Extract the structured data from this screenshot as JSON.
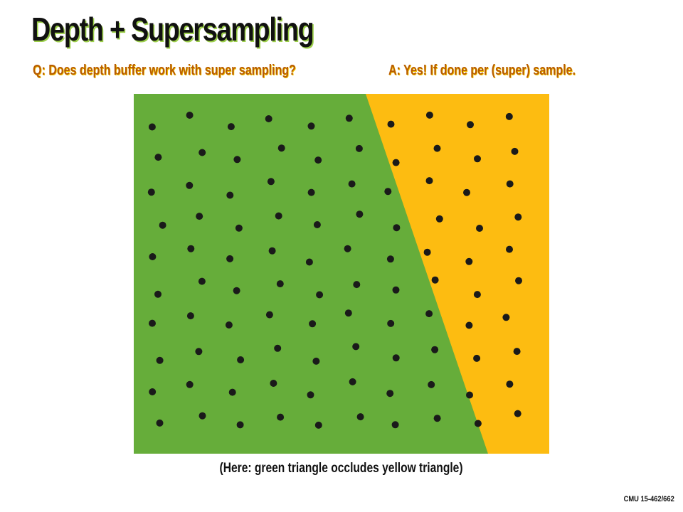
{
  "slide": {
    "title": "Depth + Supersampling",
    "question": "Q: Does depth buffer work with super sampling?",
    "answer": "A: Yes! If done per (super) sample.",
    "caption": "(Here: green triangle occludes yellow triangle)",
    "course_tag": "CMU 15-462/662"
  },
  "figure": {
    "colors": {
      "green_triangle": "#66ad3a",
      "yellow_triangle": "#fdbc11",
      "sample_dot": "#1a1a1a"
    },
    "sample_rows": 10,
    "sample_cols": 10
  }
}
